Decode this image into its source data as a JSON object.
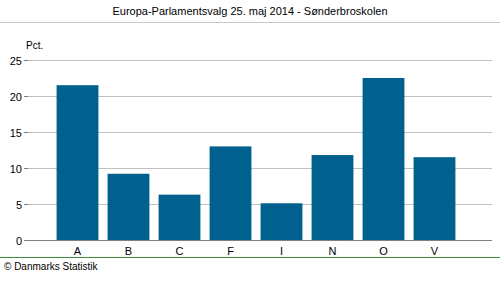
{
  "chart_data": {
    "type": "bar",
    "title": "Europa-Parlamentsvalg 25. maj 2014 - Sønderbroskolen",
    "ylabel": "Pct.",
    "source": "© Danmarks Statistik",
    "categories": [
      "A",
      "B",
      "C",
      "F",
      "I",
      "N",
      "O",
      "V"
    ],
    "values": [
      21.5,
      9.2,
      6.3,
      13.0,
      5.1,
      11.8,
      22.5,
      11.5
    ],
    "color": "#00618f",
    "ylim": [
      0,
      25
    ],
    "yticks": [
      0,
      5,
      10,
      15,
      20,
      25
    ],
    "grid": true
  }
}
